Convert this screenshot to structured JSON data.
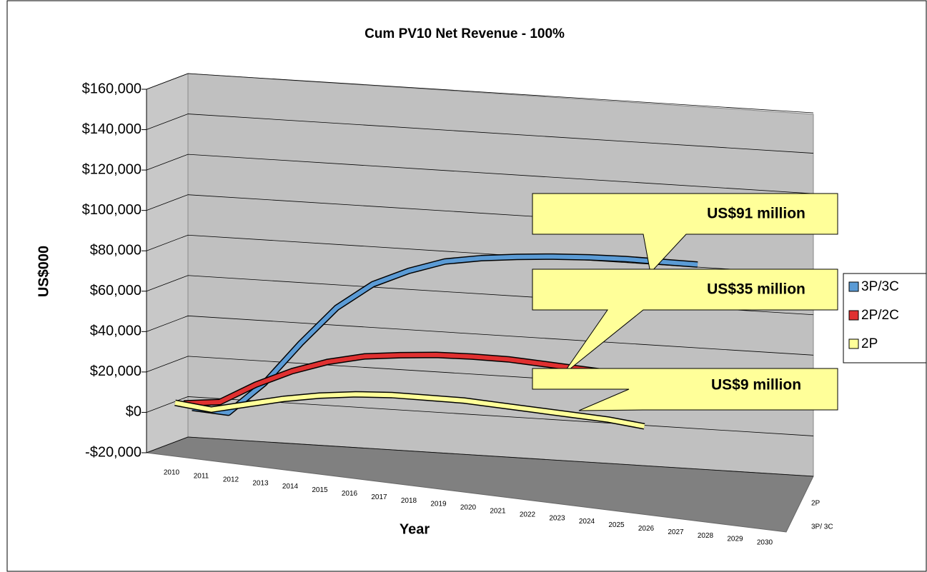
{
  "chart_data": {
    "type": "line3d",
    "title": "Cum PV10 Net Revenue - 100%",
    "x_label": "Year",
    "y_label": "US$000",
    "categories": [
      "2010",
      "2011",
      "2012",
      "2013",
      "2014",
      "2015",
      "2016",
      "2017",
      "2018",
      "2019",
      "2020",
      "2021",
      "2022",
      "2023",
      "2024",
      "2025",
      "2026",
      "2027",
      "2028",
      "2029",
      "2030"
    ],
    "series": [
      {
        "name": "3P/3C",
        "color": "#5b9bd5",
        "values": [
          -3000,
          -5000,
          10000,
          30000,
          48000,
          60000,
          67000,
          72000,
          74000,
          75000,
          75500,
          75500,
          75000,
          74000,
          73000,
          null,
          null,
          null,
          null,
          null,
          null
        ]
      },
      {
        "name": "2P/2C",
        "color": "#e03030",
        "values": [
          2000,
          3000,
          12000,
          19000,
          24000,
          27000,
          28000,
          28500,
          28000,
          27000,
          25000,
          23000,
          21000,
          19000,
          null,
          null,
          null,
          null,
          null,
          null,
          null
        ]
      },
      {
        "name": "2P",
        "color": "#ffff99",
        "values": [
          5000,
          2000,
          5000,
          8000,
          10000,
          11000,
          11000,
          10000,
          9000,
          7000,
          5000,
          3000,
          1000,
          -2000,
          null,
          null,
          null,
          null,
          null,
          null,
          null
        ]
      }
    ],
    "depth_labels": [
      "2P",
      "3P/ 3C"
    ],
    "annotations": [
      "US$91 million",
      "US$35 million",
      "US$9 million"
    ],
    "ylim": [
      -20000,
      160000
    ],
    "yticks": [
      {
        "value": -20000,
        "label": "-$20,000"
      },
      {
        "value": 0,
        "label": "$0"
      },
      {
        "value": 20000,
        "label": "$20,000"
      },
      {
        "value": 40000,
        "label": "$40,000"
      },
      {
        "value": 60000,
        "label": "$60,000"
      },
      {
        "value": 80000,
        "label": "$80,000"
      },
      {
        "value": 100000,
        "label": "$100,000"
      },
      {
        "value": 120000,
        "label": "$120,000"
      },
      {
        "value": 140000,
        "label": "$140,000"
      },
      {
        "value": 160000,
        "label": "$160,000"
      }
    ],
    "grid": true
  }
}
